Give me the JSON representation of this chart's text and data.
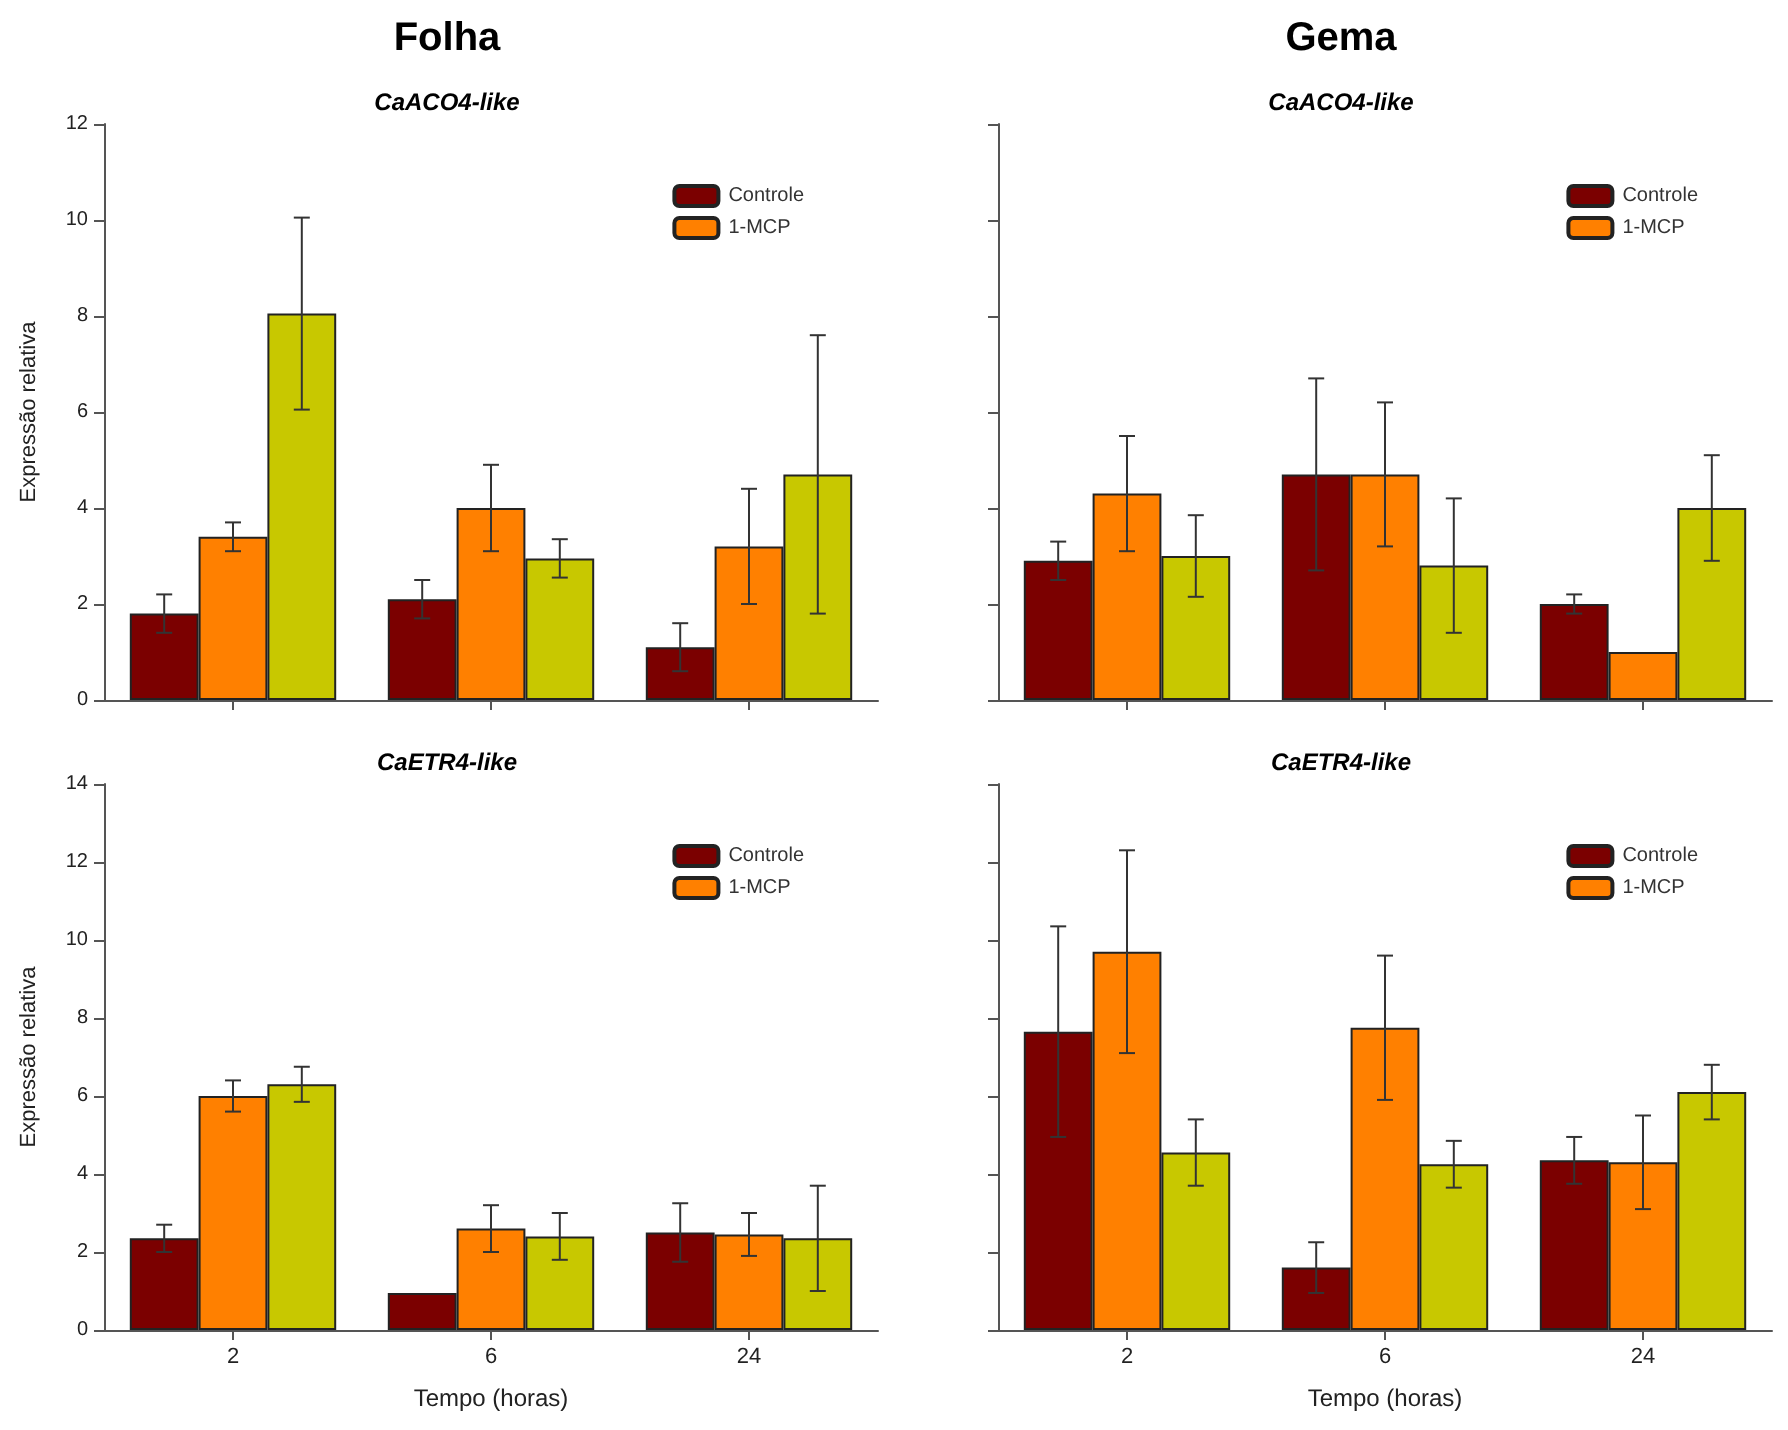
{
  "chart_data": [
    {
      "type": "bar",
      "title": "Folha",
      "subtitle": "CaACO4-like",
      "ylabel": "Expressão relativa",
      "categories": [
        "2",
        "6",
        "24"
      ],
      "ylim": [
        0,
        12
      ],
      "yticks": [
        0,
        2,
        4,
        6,
        8,
        10,
        12
      ],
      "tick_labels": "y",
      "legend": "top right",
      "series": [
        {
          "name": "Controle",
          "color": "#7b0000",
          "values": [
            1.8,
            2.1,
            1.1
          ],
          "errors": [
            0.4,
            0.4,
            0.5
          ]
        },
        {
          "name": "1-MCP",
          "color": "#ff8000",
          "values": [
            3.4,
            4.0,
            3.2
          ],
          "errors": [
            0.3,
            0.9,
            1.2
          ]
        },
        {
          "color": "#c8c800",
          "values": [
            8.05,
            2.95,
            4.7
          ],
          "errors": [
            2.0,
            0.4,
            2.9
          ]
        }
      ]
    },
    {
      "type": "bar",
      "title": "Gema",
      "subtitle": "CaACO4-like",
      "categories": [
        "2",
        "6",
        "24"
      ],
      "ylim": [
        0,
        12
      ],
      "yticks": [
        {
          "value": 0,
          "label": null
        },
        {
          "value": 2,
          "label": null
        },
        {
          "value": 4,
          "label": null
        },
        {
          "value": 6,
          "label": null
        },
        {
          "value": 8,
          "label": null
        },
        {
          "value": 10,
          "label": null
        },
        {
          "value": 12,
          "label": null
        }
      ],
      "tick_labels": false,
      "legend": "top right",
      "series": [
        {
          "name": "Controle",
          "color": "#7b0000",
          "values": [
            2.9,
            4.7,
            2.0
          ],
          "errors": [
            0.4,
            2.0,
            0.2
          ]
        },
        {
          "name": "1-MCP",
          "color": "#ff8000",
          "values": [
            4.3,
            4.7,
            1.0
          ],
          "errors": [
            1.2,
            1.5,
            null
          ]
        },
        {
          "color": "#c8c800",
          "values": [
            3.0,
            2.8,
            4.0
          ],
          "errors": [
            0.85,
            1.4,
            1.1
          ]
        }
      ]
    },
    {
      "type": "bar",
      "title": "CaETR4-like",
      "ylabel": "Expressão relativa",
      "xlabel": "Tempo (horas)",
      "categories": [
        "2",
        "6",
        "24"
      ],
      "ylim": [
        0,
        14
      ],
      "yticks": [
        0,
        2,
        4,
        6,
        8,
        10,
        12,
        14
      ],
      "legend": "top right",
      "series": [
        {
          "name": "Controle",
          "color": "#7b0000",
          "values": [
            2.35,
            0.95,
            2.5
          ],
          "errors": [
            0.35,
            null,
            0.75
          ]
        },
        {
          "name": "1-MCP",
          "color": "#ff8000",
          "values": [
            6.0,
            2.6,
            2.45
          ],
          "errors": [
            0.4,
            0.6,
            0.55
          ]
        },
        {
          "color": "#c8c800",
          "values": [
            6.3,
            2.4,
            2.35
          ],
          "errors": [
            0.45,
            0.6,
            1.35
          ]
        }
      ]
    },
    {
      "type": "bar",
      "title": "CaETR4-like",
      "xlabel": "Tempo (horas)",
      "categories": [
        "2",
        "6",
        "24"
      ],
      "ylim": [
        0,
        14
      ],
      "yticks": [
        {
          "value": 0,
          "label": null
        },
        {
          "value": 2,
          "label": null
        },
        {
          "value": 4,
          "label": null
        },
        {
          "value": 6,
          "label": null
        },
        {
          "value": 8,
          "label": null
        },
        {
          "value": 10,
          "label": null
        },
        {
          "value": 12,
          "label": null
        },
        {
          "value": 14,
          "label": null
        }
      ],
      "tick_labels": "x",
      "legend": "top right",
      "series": [
        {
          "name": "Controle",
          "color": "#7b0000",
          "values": [
            7.65,
            1.6,
            4.35
          ],
          "errors": [
            2.7,
            0.65,
            0.6
          ]
        },
        {
          "name": "1-MCP",
          "color": "#ff8000",
          "values": [
            9.7,
            7.75,
            4.3
          ],
          "errors": [
            2.6,
            1.85,
            1.2
          ]
        },
        {
          "color": "#c8c800",
          "values": [
            4.55,
            4.25,
            6.1
          ],
          "errors": [
            0.85,
            0.6,
            0.7
          ]
        }
      ]
    }
  ]
}
